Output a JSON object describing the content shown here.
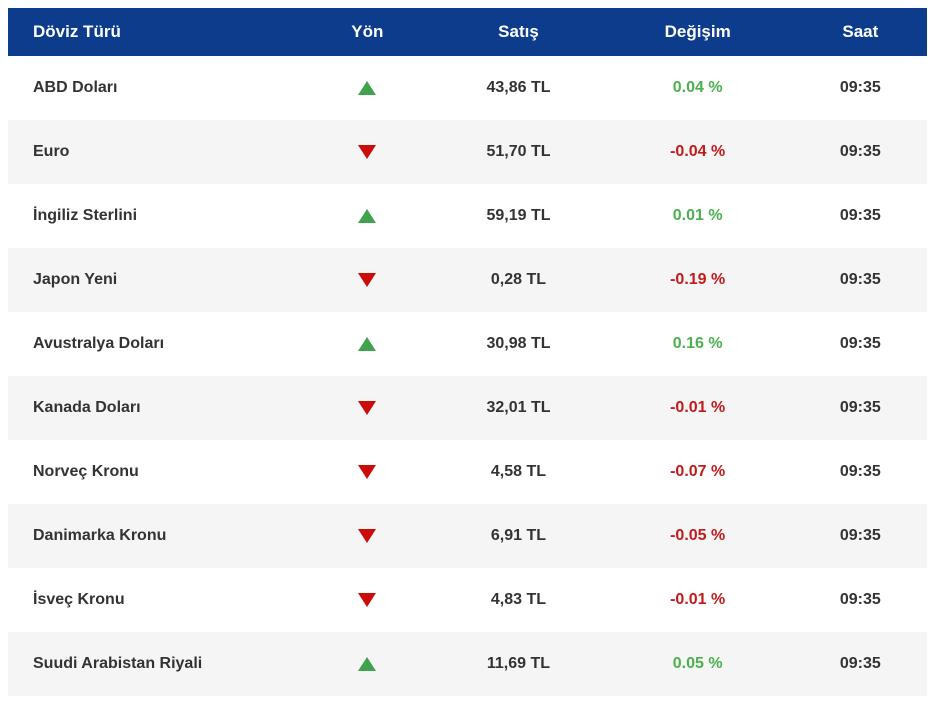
{
  "colors": {
    "header_bg": "#0d3c8d",
    "header_text": "#ffffff",
    "row_bg": "#ffffff",
    "row_alt_bg": "#f5f5f5",
    "text": "#333333",
    "up_triangle": "#3fa34d",
    "up_text": "#4caf50",
    "down_triangle": "#cc0b0b",
    "down_text": "#c41a1a"
  },
  "table": {
    "columns": [
      {
        "label": "Döviz Türü"
      },
      {
        "label": "Yön"
      },
      {
        "label": "Satış"
      },
      {
        "label": "Değişim"
      },
      {
        "label": "Saat"
      }
    ],
    "rows": [
      {
        "doviz_turu": "ABD Doları",
        "yon": "up",
        "satis": "43,86 TL",
        "degisim": "0.04 %",
        "saat": "09:35"
      },
      {
        "doviz_turu": "Euro",
        "yon": "down",
        "satis": "51,70 TL",
        "degisim": "-0.04 %",
        "saat": "09:35"
      },
      {
        "doviz_turu": "İngiliz Sterlini",
        "yon": "up",
        "satis": "59,19 TL",
        "degisim": "0.01 %",
        "saat": "09:35"
      },
      {
        "doviz_turu": "Japon Yeni",
        "yon": "down",
        "satis": "0,28 TL",
        "degisim": "-0.19 %",
        "saat": "09:35"
      },
      {
        "doviz_turu": "Avustralya Doları",
        "yon": "up",
        "satis": "30,98 TL",
        "degisim": "0.16 %",
        "saat": "09:35"
      },
      {
        "doviz_turu": "Kanada Doları",
        "yon": "down",
        "satis": "32,01 TL",
        "degisim": "-0.01 %",
        "saat": "09:35"
      },
      {
        "doviz_turu": "Norveç Kronu",
        "yon": "down",
        "satis": "4,58 TL",
        "degisim": "-0.07 %",
        "saat": "09:35"
      },
      {
        "doviz_turu": "Danimarka Kronu",
        "yon": "down",
        "satis": "6,91 TL",
        "degisim": "-0.05 %",
        "saat": "09:35"
      },
      {
        "doviz_turu": "İsveç Kronu",
        "yon": "down",
        "satis": "4,83 TL",
        "degisim": "-0.01 %",
        "saat": "09:35"
      },
      {
        "doviz_turu": "Suudi Arabistan Riyali",
        "yon": "up",
        "satis": "11,69 TL",
        "degisim": "0.05 %",
        "saat": "09:35"
      }
    ]
  }
}
